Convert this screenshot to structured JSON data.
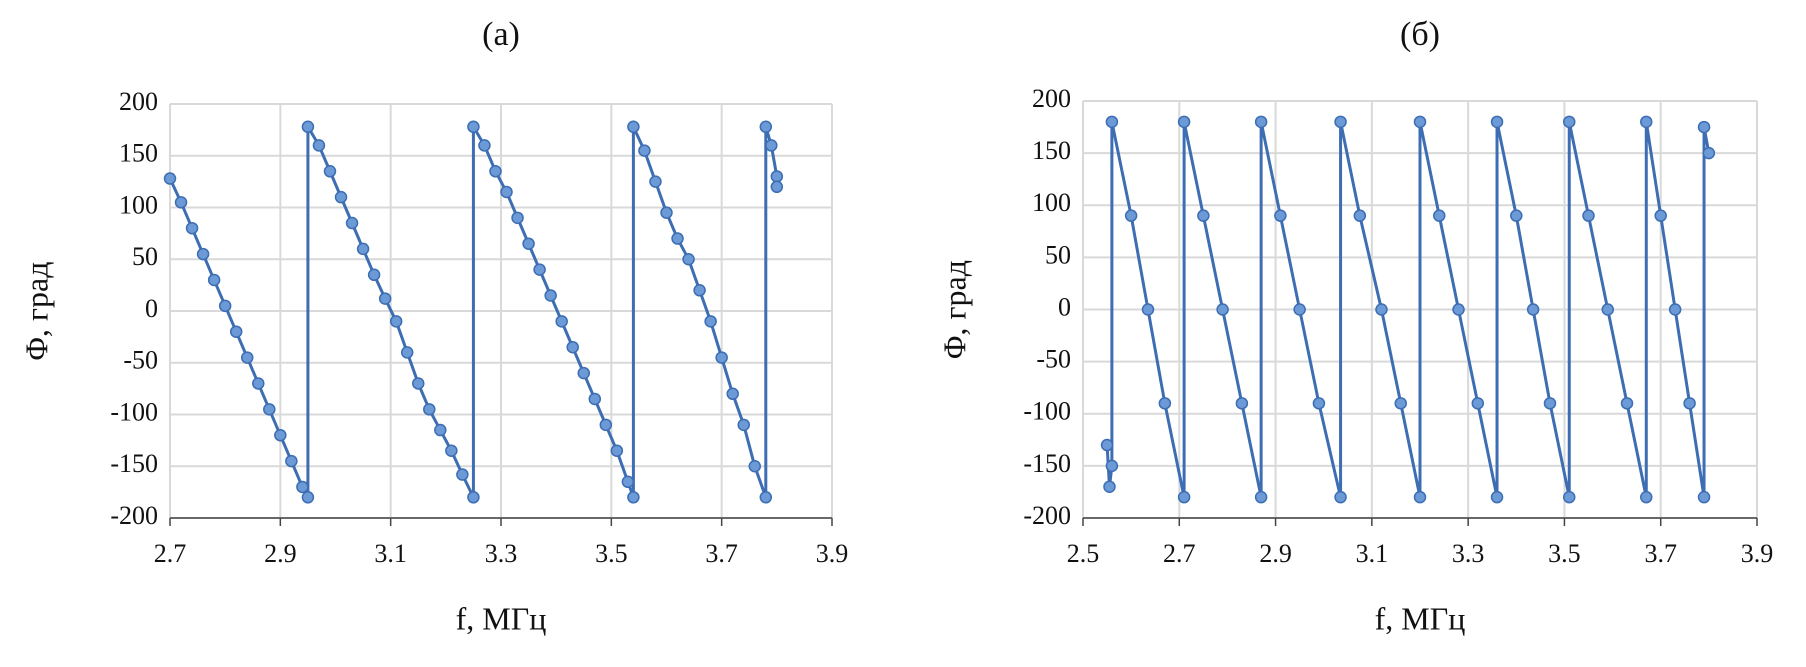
{
  "chart_data": [
    {
      "type": "scatter-line",
      "title": "(a)",
      "x_label": "f, МГц",
      "y_label": "Φ, град",
      "xlim": [
        2.7,
        3.9
      ],
      "xticks": [
        2.7,
        2.9,
        3.1,
        3.3,
        3.5,
        3.7,
        3.9
      ],
      "ylim": [
        -200,
        200
      ],
      "yticks": [
        -200,
        -150,
        -100,
        -50,
        0,
        50,
        100,
        150,
        200
      ],
      "grid": true,
      "series": [
        {
          "color": "#3d6db3",
          "x": [
            2.7,
            2.72,
            2.74,
            2.76,
            2.78,
            2.8,
            2.82,
            2.84,
            2.86,
            2.88,
            2.9,
            2.92,
            2.94,
            2.95,
            2.95,
            2.97,
            2.99,
            3.01,
            3.03,
            3.05,
            3.07,
            3.09,
            3.11,
            3.13,
            3.15,
            3.17,
            3.19,
            3.21,
            3.23,
            3.25,
            3.25,
            3.27,
            3.29,
            3.31,
            3.33,
            3.35,
            3.37,
            3.39,
            3.41,
            3.43,
            3.45,
            3.47,
            3.49,
            3.51,
            3.53,
            3.54,
            3.54,
            3.56,
            3.58,
            3.6,
            3.62,
            3.64,
            3.66,
            3.68,
            3.7,
            3.72,
            3.74,
            3.76,
            3.78,
            3.78,
            3.79,
            3.8,
            3.8
          ],
          "values": [
            128,
            105,
            80,
            55,
            30,
            5,
            -20,
            -45,
            -70,
            -95,
            -120,
            -145,
            -170,
            -180,
            178,
            160,
            135,
            110,
            85,
            60,
            35,
            12,
            -10,
            -40,
            -70,
            -95,
            -115,
            -135,
            -158,
            -180,
            178,
            160,
            135,
            115,
            90,
            65,
            40,
            15,
            -10,
            -35,
            -60,
            -85,
            -110,
            -135,
            -165,
            -180,
            178,
            155,
            125,
            95,
            70,
            50,
            20,
            -10,
            -45,
            -80,
            -110,
            -150,
            -180,
            178,
            160,
            130,
            120
          ]
        }
      ]
    },
    {
      "type": "scatter-line",
      "title": "(б)",
      "x_label": "f, МГц",
      "y_label": "Φ, град",
      "xlim": [
        2.5,
        3.9
      ],
      "xticks": [
        2.5,
        2.7,
        2.9,
        3.1,
        3.3,
        3.5,
        3.7,
        3.9
      ],
      "ylim": [
        -200,
        200
      ],
      "yticks": [
        -200,
        -150,
        -100,
        -50,
        0,
        50,
        100,
        150,
        200
      ],
      "grid": true,
      "series": [
        {
          "color": "#3d6db3",
          "x": [
            2.55,
            2.555,
            2.56,
            2.56,
            2.6,
            2.635,
            2.67,
            2.71,
            2.71,
            2.75,
            2.79,
            2.83,
            2.87,
            2.87,
            2.91,
            2.95,
            2.99,
            3.035,
            3.035,
            3.075,
            3.12,
            3.16,
            3.2,
            3.2,
            3.24,
            3.28,
            3.32,
            3.36,
            3.36,
            3.4,
            3.435,
            3.47,
            3.51,
            3.51,
            3.55,
            3.59,
            3.63,
            3.67,
            3.67,
            3.7,
            3.73,
            3.76,
            3.79,
            3.79,
            3.8
          ],
          "values": [
            -130,
            -170,
            -150,
            180,
            90,
            0,
            -90,
            -180,
            180,
            90,
            0,
            -90,
            -180,
            180,
            90,
            0,
            -90,
            -180,
            180,
            90,
            0,
            -90,
            -180,
            180,
            90,
            0,
            -90,
            -180,
            180,
            90,
            0,
            -90,
            -180,
            180,
            90,
            0,
            -90,
            -180,
            180,
            90,
            0,
            -90,
            -180,
            175,
            150
          ]
        }
      ]
    }
  ]
}
